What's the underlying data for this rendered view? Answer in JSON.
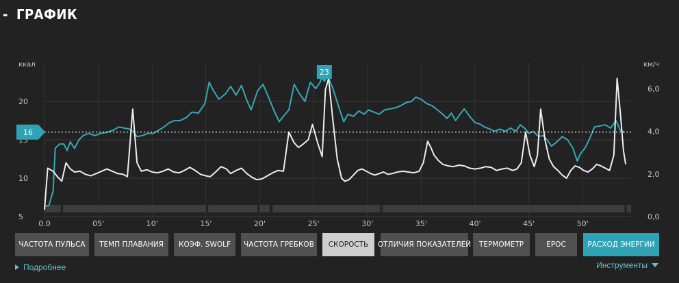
{
  "section": {
    "dash": "-",
    "title": "ГРАФИК"
  },
  "chart_data": {
    "type": "line",
    "x_ticks": [
      "0.0",
      "05'",
      "10'",
      "15'",
      "20'",
      "25'",
      "30'",
      "35'",
      "40'",
      "45'",
      "50'"
    ],
    "x_tick_values": [
      0,
      5,
      10,
      15,
      20,
      25,
      30,
      35,
      40,
      45,
      50
    ],
    "xlim": [
      0,
      54.5
    ],
    "left_axis": {
      "unit": "ккал",
      "ticks": [
        "5",
        "10",
        "15",
        "20"
      ],
      "tick_values": [
        5,
        10,
        15,
        20
      ],
      "ylim": [
        5,
        25
      ]
    },
    "right_axis": {
      "unit": "км/ч",
      "ticks": [
        "0,0",
        "2,0",
        "4,0",
        "6,0"
      ],
      "tick_values": [
        0,
        2,
        4,
        6
      ],
      "ylim": [
        0,
        7.2
      ]
    },
    "average_marker": {
      "label": "16",
      "value": 16
    },
    "peak_marker": {
      "label": "23",
      "x": 26.0,
      "value": 23
    },
    "grid": true,
    "series": [
      {
        "color": "#37a9ba",
        "axis": "right",
        "points": [
          [
            0,
            0.5
          ],
          [
            0.4,
            0.5
          ],
          [
            0.8,
            1.2
          ],
          [
            1.0,
            3.2
          ],
          [
            1.4,
            3.4
          ],
          [
            1.8,
            3.4
          ],
          [
            2.1,
            3.1
          ],
          [
            2.4,
            3.5
          ],
          [
            2.8,
            3.2
          ],
          [
            3.2,
            3.6
          ],
          [
            3.6,
            3.8
          ],
          [
            4.1,
            3.9
          ],
          [
            4.7,
            3.8
          ],
          [
            5.2,
            3.9
          ],
          [
            5.8,
            3.95
          ],
          [
            6.4,
            4.05
          ],
          [
            6.9,
            4.2
          ],
          [
            7.4,
            4.15
          ],
          [
            7.9,
            4.1
          ],
          [
            8.3,
            3.95
          ],
          [
            8.6,
            3.75
          ],
          [
            9.1,
            3.8
          ],
          [
            9.6,
            3.9
          ],
          [
            10.1,
            3.9
          ],
          [
            10.6,
            4.05
          ],
          [
            11.1,
            4.2
          ],
          [
            11.6,
            4.4
          ],
          [
            12.1,
            4.5
          ],
          [
            12.6,
            4.5
          ],
          [
            13.2,
            4.65
          ],
          [
            13.7,
            4.9
          ],
          [
            14.3,
            4.85
          ],
          [
            14.9,
            5.3
          ],
          [
            15.3,
            6.3
          ],
          [
            15.7,
            5.9
          ],
          [
            16.2,
            5.5
          ],
          [
            16.8,
            5.75
          ],
          [
            17.3,
            6.1
          ],
          [
            17.8,
            5.7
          ],
          [
            18.3,
            6.15
          ],
          [
            18.8,
            5.45
          ],
          [
            19.2,
            5.0
          ],
          [
            19.8,
            5.9
          ],
          [
            20.3,
            6.2
          ],
          [
            20.9,
            5.5
          ],
          [
            21.3,
            5.0
          ],
          [
            21.8,
            4.45
          ],
          [
            22.2,
            4.7
          ],
          [
            22.7,
            5.0
          ],
          [
            23.2,
            6.2
          ],
          [
            23.7,
            5.75
          ],
          [
            24.2,
            5.4
          ],
          [
            24.7,
            6.3
          ],
          [
            25.2,
            6.0
          ],
          [
            25.6,
            6.3
          ],
          [
            26.0,
            6.9
          ],
          [
            26.4,
            6.5
          ],
          [
            26.8,
            6.0
          ],
          [
            27.3,
            5.2
          ],
          [
            27.8,
            4.45
          ],
          [
            28.2,
            4.8
          ],
          [
            28.7,
            4.7
          ],
          [
            29.2,
            4.95
          ],
          [
            29.7,
            4.8
          ],
          [
            30.1,
            5.0
          ],
          [
            30.6,
            4.9
          ],
          [
            31.1,
            4.8
          ],
          [
            31.6,
            5.0
          ],
          [
            32.1,
            5.05
          ],
          [
            32.6,
            5.1
          ],
          [
            33.1,
            5.2
          ],
          [
            33.6,
            5.35
          ],
          [
            34.1,
            5.4
          ],
          [
            34.5,
            5.6
          ],
          [
            35.0,
            5.5
          ],
          [
            35.5,
            5.3
          ],
          [
            36.0,
            5.2
          ],
          [
            36.5,
            5.0
          ],
          [
            37.0,
            4.8
          ],
          [
            37.4,
            4.6
          ],
          [
            37.8,
            4.85
          ],
          [
            38.2,
            4.5
          ],
          [
            38.6,
            4.8
          ],
          [
            39.0,
            5.05
          ],
          [
            39.5,
            4.7
          ],
          [
            40.0,
            4.4
          ],
          [
            40.4,
            4.35
          ],
          [
            40.9,
            4.2
          ],
          [
            41.4,
            4.1
          ],
          [
            41.8,
            4.0
          ],
          [
            42.3,
            4.1
          ],
          [
            42.8,
            4.0
          ],
          [
            43.3,
            4.15
          ],
          [
            43.8,
            4.0
          ],
          [
            44.2,
            4.3
          ],
          [
            44.6,
            4.15
          ],
          [
            45.0,
            3.9
          ],
          [
            45.4,
            4.0
          ],
          [
            45.9,
            3.75
          ],
          [
            46.3,
            3.8
          ],
          [
            46.7,
            3.6
          ],
          [
            47.1,
            3.3
          ],
          [
            47.6,
            3.5
          ],
          [
            48.1,
            3.75
          ],
          [
            48.6,
            3.6
          ],
          [
            49.1,
            3.2
          ],
          [
            49.5,
            2.6
          ],
          [
            49.8,
            2.95
          ],
          [
            50.2,
            3.2
          ],
          [
            50.6,
            3.6
          ],
          [
            51.1,
            4.2
          ],
          [
            51.6,
            4.25
          ],
          [
            52.1,
            4.3
          ],
          [
            52.6,
            4.15
          ],
          [
            53.1,
            4.5
          ],
          [
            53.5,
            4.05
          ],
          [
            53.9,
            3.95
          ]
        ]
      },
      {
        "color": "#eeeeee",
        "axis": "left",
        "points": [
          [
            0,
            5.9
          ],
          [
            0.3,
            11.3
          ],
          [
            0.8,
            10.9
          ],
          [
            1.2,
            10.2
          ],
          [
            1.6,
            9.6
          ],
          [
            2.0,
            12.0
          ],
          [
            2.4,
            11.2
          ],
          [
            2.8,
            10.8
          ],
          [
            3.3,
            10.9
          ],
          [
            3.8,
            10.5
          ],
          [
            4.3,
            10.3
          ],
          [
            4.8,
            10.6
          ],
          [
            5.3,
            10.9
          ],
          [
            5.8,
            11.2
          ],
          [
            6.3,
            10.9
          ],
          [
            6.8,
            10.6
          ],
          [
            7.3,
            10.5
          ],
          [
            7.7,
            10.2
          ],
          [
            8.2,
            19.0
          ],
          [
            8.6,
            12.0
          ],
          [
            9.0,
            10.9
          ],
          [
            9.5,
            11.1
          ],
          [
            10.0,
            10.8
          ],
          [
            10.5,
            10.7
          ],
          [
            11.0,
            10.9
          ],
          [
            11.5,
            11.2
          ],
          [
            12.0,
            10.8
          ],
          [
            12.5,
            10.7
          ],
          [
            13.0,
            11.0
          ],
          [
            13.5,
            11.4
          ],
          [
            14.0,
            11.0
          ],
          [
            14.5,
            10.5
          ],
          [
            15.0,
            10.3
          ],
          [
            15.4,
            10.2
          ],
          [
            15.9,
            10.8
          ],
          [
            16.4,
            11.5
          ],
          [
            16.9,
            11.2
          ],
          [
            17.3,
            10.6
          ],
          [
            17.8,
            11.0
          ],
          [
            18.3,
            11.3
          ],
          [
            18.8,
            10.6
          ],
          [
            19.3,
            10.1
          ],
          [
            19.7,
            9.8
          ],
          [
            20.2,
            9.9
          ],
          [
            20.7,
            10.3
          ],
          [
            21.2,
            10.7
          ],
          [
            21.7,
            11.0
          ],
          [
            22.2,
            10.9
          ],
          [
            22.7,
            16.0
          ],
          [
            23.2,
            14.6
          ],
          [
            23.6,
            14.0
          ],
          [
            24.0,
            14.4
          ],
          [
            24.5,
            15.0
          ],
          [
            24.9,
            17.0
          ],
          [
            25.4,
            14.5
          ],
          [
            25.8,
            12.8
          ],
          [
            26.1,
            21.5
          ],
          [
            26.4,
            23.0
          ],
          [
            26.8,
            17.5
          ],
          [
            27.2,
            12.5
          ],
          [
            27.6,
            10.0
          ],
          [
            27.9,
            9.6
          ],
          [
            28.3,
            9.8
          ],
          [
            28.7,
            10.4
          ],
          [
            29.1,
            11.0
          ],
          [
            29.5,
            11.2
          ],
          [
            29.9,
            10.9
          ],
          [
            30.3,
            10.6
          ],
          [
            30.7,
            10.4
          ],
          [
            31.1,
            10.6
          ],
          [
            31.5,
            10.8
          ],
          [
            31.9,
            10.5
          ],
          [
            32.3,
            10.6
          ],
          [
            32.8,
            10.8
          ],
          [
            33.3,
            10.9
          ],
          [
            33.8,
            10.8
          ],
          [
            34.3,
            10.7
          ],
          [
            34.8,
            10.9
          ],
          [
            35.2,
            12.0
          ],
          [
            35.6,
            14.8
          ],
          [
            35.9,
            14.0
          ],
          [
            36.2,
            13.0
          ],
          [
            36.6,
            12.3
          ],
          [
            37.0,
            11.8
          ],
          [
            37.5,
            11.6
          ],
          [
            38.0,
            11.5
          ],
          [
            38.5,
            11.7
          ],
          [
            39.0,
            11.6
          ],
          [
            39.5,
            11.3
          ],
          [
            40.0,
            11.2
          ],
          [
            40.5,
            11.3
          ],
          [
            41.0,
            11.5
          ],
          [
            41.5,
            11.4
          ],
          [
            42.0,
            11.0
          ],
          [
            42.5,
            11.2
          ],
          [
            43.0,
            11.3
          ],
          [
            43.5,
            11.0
          ],
          [
            43.9,
            11.2
          ],
          [
            44.3,
            12.0
          ],
          [
            44.7,
            16.0
          ],
          [
            45.1,
            13.0
          ],
          [
            45.5,
            11.5
          ],
          [
            45.8,
            13.0
          ],
          [
            46.1,
            19.0
          ],
          [
            46.5,
            15.0
          ],
          [
            46.9,
            12.5
          ],
          [
            47.3,
            11.5
          ],
          [
            47.7,
            11.0
          ],
          [
            48.1,
            10.4
          ],
          [
            48.5,
            10.0
          ],
          [
            48.9,
            11.0
          ],
          [
            49.3,
            11.6
          ],
          [
            49.7,
            11.4
          ],
          [
            50.1,
            11.0
          ],
          [
            50.5,
            10.8
          ],
          [
            50.9,
            11.2
          ],
          [
            51.3,
            11.8
          ],
          [
            51.7,
            11.6
          ],
          [
            52.1,
            11.3
          ],
          [
            52.5,
            11.0
          ],
          [
            52.9,
            13.0
          ],
          [
            53.2,
            23.0
          ],
          [
            53.5,
            18.5
          ],
          [
            53.8,
            13.5
          ],
          [
            54.0,
            11.8
          ]
        ]
      }
    ]
  },
  "tabs": [
    {
      "label": "ЧАСТОТА ПУЛЬСА",
      "state": "normal"
    },
    {
      "label": "ТЕМП ПЛАВАНИЯ",
      "state": "normal"
    },
    {
      "label": "КОЭФ. SWOLF",
      "state": "normal"
    },
    {
      "label": "ЧАСТОТА ГРЕБКОВ",
      "state": "normal"
    },
    {
      "label": "СКОРОСТЬ",
      "state": "selected"
    },
    {
      "label": "ОТЛИЧИЯ ПОКАЗАТЕЛЕЙ",
      "state": "normal"
    },
    {
      "label": "ТЕРМОМЕТР",
      "state": "normal"
    },
    {
      "label": "EPOC",
      "state": "normal"
    },
    {
      "label": "РАСХОД ЭНЕРГИИ",
      "state": "active"
    }
  ],
  "footer": {
    "details_label": "Подробнее",
    "tools_label": "Инструменты"
  }
}
